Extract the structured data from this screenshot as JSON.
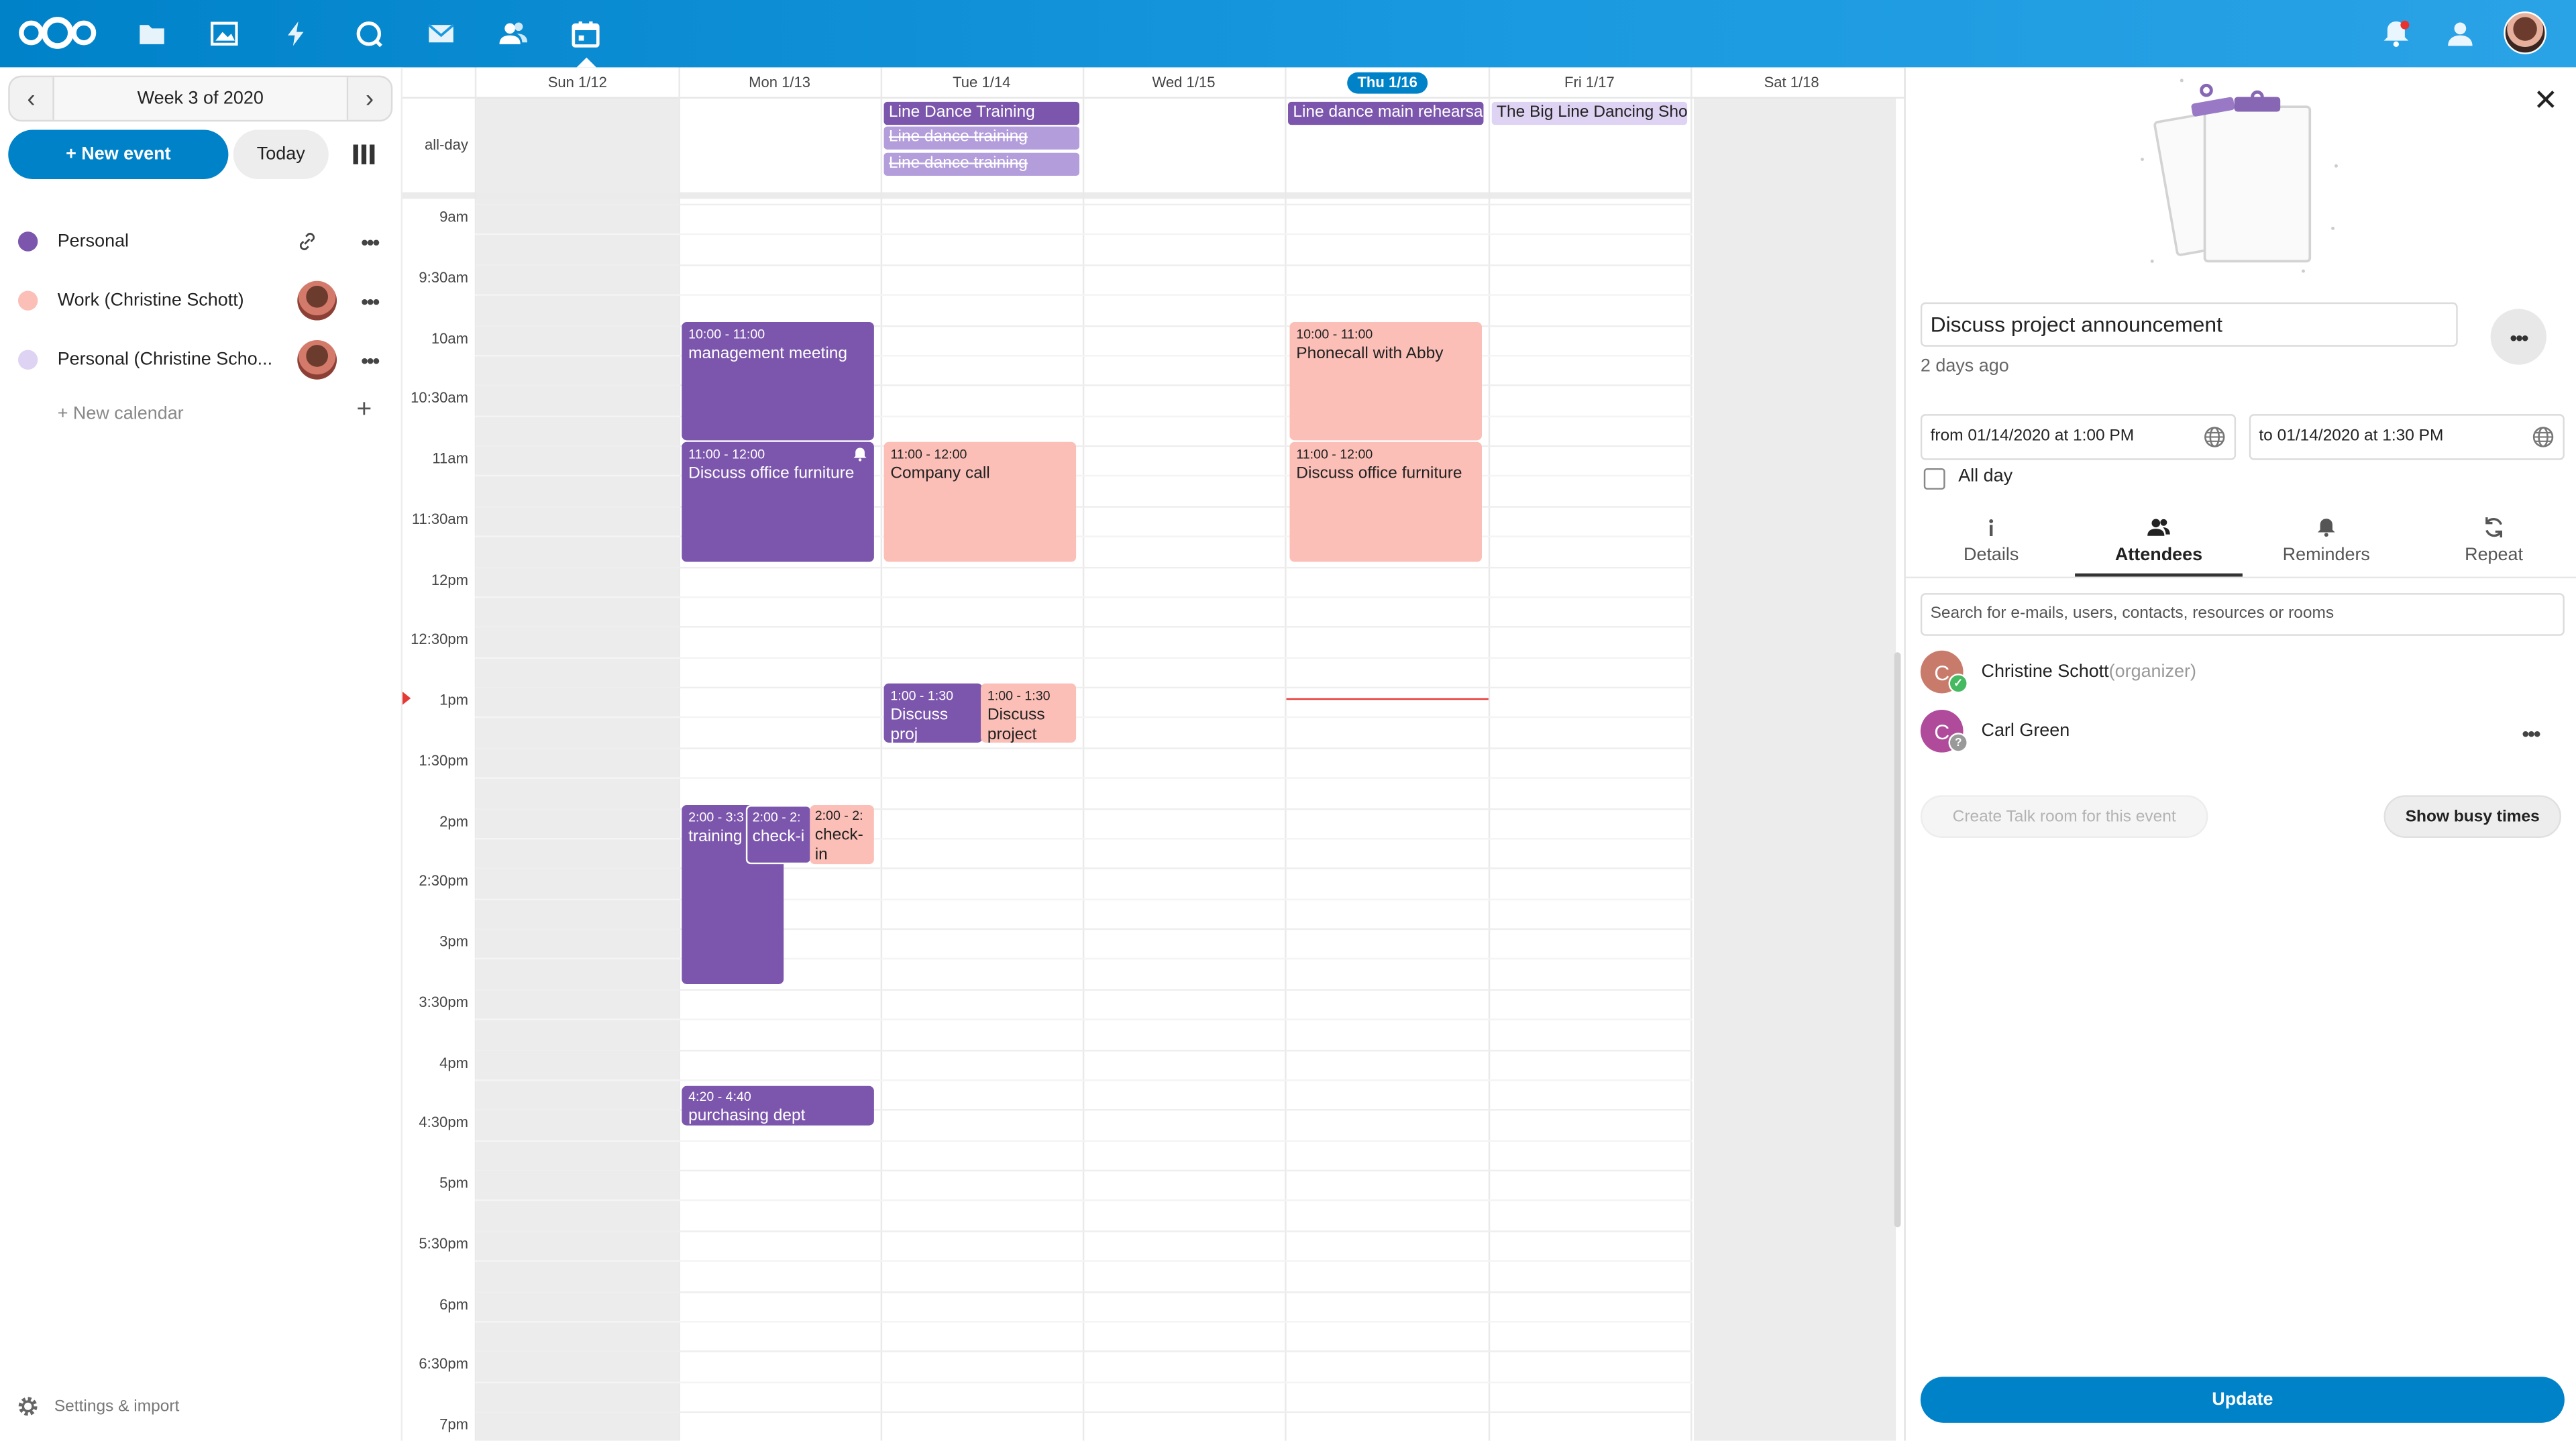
{
  "header": {
    "apps": [
      "logo-icon",
      "files-icon",
      "photos-icon",
      "activity-icon",
      "search-icon",
      "mail-icon",
      "contacts-icon",
      "calendar-icon"
    ],
    "active_app": "calendar-icon",
    "right_icons": [
      "notifications-icon",
      "contacts-menu-icon",
      "user-avatar"
    ]
  },
  "nav": {
    "week_label": "Week 3 of 2020",
    "new_event_label": "+ New event",
    "today_label": "Today",
    "calendars": [
      {
        "name": "Personal",
        "color": "#7b56ac"
      },
      {
        "name": "Work (Christine Schott)",
        "color": "#fbbfb7"
      },
      {
        "name": "Personal (Christine Scho...",
        "color": "#ded3f3"
      }
    ],
    "new_calendar_label": "+ New calendar",
    "settings_label": "Settings & import"
  },
  "grid": {
    "days": [
      "Sun 1/12",
      "Mon 1/13",
      "Tue 1/14",
      "Wed 1/15",
      "Thu 1/16",
      "Fri 1/17",
      "Sat 1/18"
    ],
    "today_index": 4,
    "allday_label": "all-day",
    "times": [
      "9am",
      "9:30am",
      "10am",
      "10:30am",
      "11am",
      "11:30am",
      "12pm",
      "12:30pm",
      "1pm",
      "1:30pm",
      "2pm",
      "2:30pm",
      "3pm",
      "3:30pm",
      "4pm",
      "4:30pm",
      "5pm",
      "5:30pm",
      "6pm",
      "6:30pm",
      "7pm"
    ],
    "allday_events": [
      {
        "day": 2,
        "row": 0,
        "title": "Line Dance Training",
        "style": "purple"
      },
      {
        "day": 2,
        "row": 1,
        "title": "Line dance training",
        "style": "lpurple-strike"
      },
      {
        "day": 2,
        "row": 2,
        "title": "Line dance training",
        "style": "lpurple-strike"
      },
      {
        "day": 4,
        "row": 0,
        "title": "Line dance main rehearsal",
        "style": "purple"
      },
      {
        "day": 5,
        "row": 0,
        "title": "The Big Line Dancing Show",
        "style": "lavender"
      }
    ],
    "events": [
      {
        "id": "mon-mgmt",
        "time": "10:00 - 11:00",
        "title": "management meeting"
      },
      {
        "id": "mon-furniture",
        "time": "11:00 - 12:00",
        "title": "Discuss office furniture"
      },
      {
        "id": "mon-training",
        "time": "2:00 - 3:3",
        "title": "training"
      },
      {
        "id": "mon-checkin-1",
        "time": "2:00 - 2:",
        "title": "check-i"
      },
      {
        "id": "mon-checkin-2",
        "time": "2:00 - 2:",
        "title": "check-in"
      },
      {
        "id": "mon-purchasing",
        "time": "4:20 - 4:40",
        "title": "purchasing dept"
      },
      {
        "id": "tue-company",
        "time": "11:00 - 12:00",
        "title": "Company call"
      },
      {
        "id": "tue-discuss-1",
        "time": "1:00 - 1:30",
        "title": "Discuss proj announcem"
      },
      {
        "id": "tue-discuss-2",
        "time": "1:00 - 1:30",
        "title": "Discuss project"
      },
      {
        "id": "thu-phone",
        "time": "10:00 - 11:00",
        "title": "Phonecall with Abby"
      },
      {
        "id": "thu-furniture",
        "time": "11:00 - 12:00",
        "title": "Discuss office furniture"
      }
    ]
  },
  "sidebar": {
    "title": "Discuss project announcement",
    "modified": "2 days ago",
    "from": "from 01/14/2020 at 1:00 PM",
    "to": "to 01/14/2020 at 1:30 PM",
    "allday_label": "All day",
    "tabs": [
      {
        "label": "Details",
        "icon": "info-icon"
      },
      {
        "label": "Attendees",
        "icon": "attendees-icon",
        "active": true
      },
      {
        "label": "Reminders",
        "icon": "bell-icon"
      },
      {
        "label": "Repeat",
        "icon": "repeat-icon"
      }
    ],
    "search_placeholder": "Search for e-mails, users, contacts, resources or rooms",
    "attendees": [
      {
        "initial": "C",
        "name": "Christine Schott",
        "role": "(organizer)",
        "avatar_color": "#c97b6b",
        "status": "accepted",
        "status_color": "#46ba61"
      },
      {
        "initial": "C",
        "name": "Carl Green",
        "role": "",
        "avatar_color": "#b04a9b",
        "status": "unknown",
        "status_color": "#999999"
      }
    ],
    "talk_label": "Create Talk room for this event",
    "busy_label": "Show busy times",
    "update_label": "Update"
  },
  "colors": {
    "primary": "#0082c9",
    "personal": "#7b56ac",
    "work": "#fbbfb7",
    "personal_shared": "#ded3f3"
  }
}
